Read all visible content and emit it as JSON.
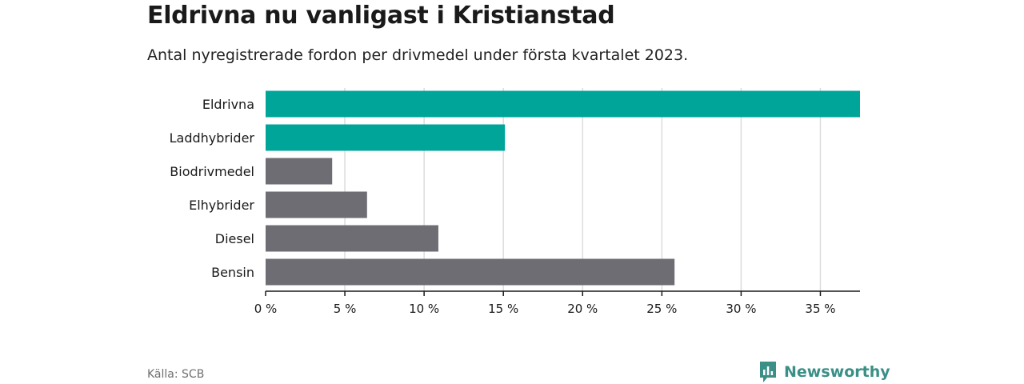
{
  "header": {
    "title": "Eldrivna nu vanligast i Kristianstad",
    "subtitle": "Antal nyregistrerade fordon per drivmedel under första kvartalet 2023."
  },
  "footer": {
    "source": "Källa: SCB",
    "brand": "Newsworthy",
    "brand_icon": "newsworthy-logo-icon"
  },
  "colors": {
    "highlight": "#00a59a",
    "default": "#6e6d74",
    "grid": "#dcdcdc",
    "axis": "#1a1a1a",
    "brand": "#3a8f86"
  },
  "chart_data": {
    "type": "bar",
    "orientation": "horizontal",
    "title": "Eldrivna nu vanligast i Kristianstad",
    "subtitle": "Antal nyregistrerade fordon per drivmedel under första kvartalet 2023.",
    "xlabel": "",
    "ylabel": "",
    "categories": [
      "Eldrivna",
      "Laddhybrider",
      "Biodrivmedel",
      "Elhybrider",
      "Diesel",
      "Bensin"
    ],
    "values": [
      37.5,
      15.1,
      4.2,
      6.4,
      10.9,
      25.8
    ],
    "highlighted": [
      true,
      true,
      false,
      false,
      false,
      false
    ],
    "unit": "%",
    "xlim": [
      0,
      37.5
    ],
    "ticks": [
      0,
      5,
      10,
      15,
      20,
      25,
      30,
      35
    ],
    "tick_labels": [
      "0 %",
      "5 %",
      "10 %",
      "15 %",
      "20 %",
      "25 %",
      "30 %",
      "35 %"
    ],
    "grid": true,
    "legend": "none"
  }
}
